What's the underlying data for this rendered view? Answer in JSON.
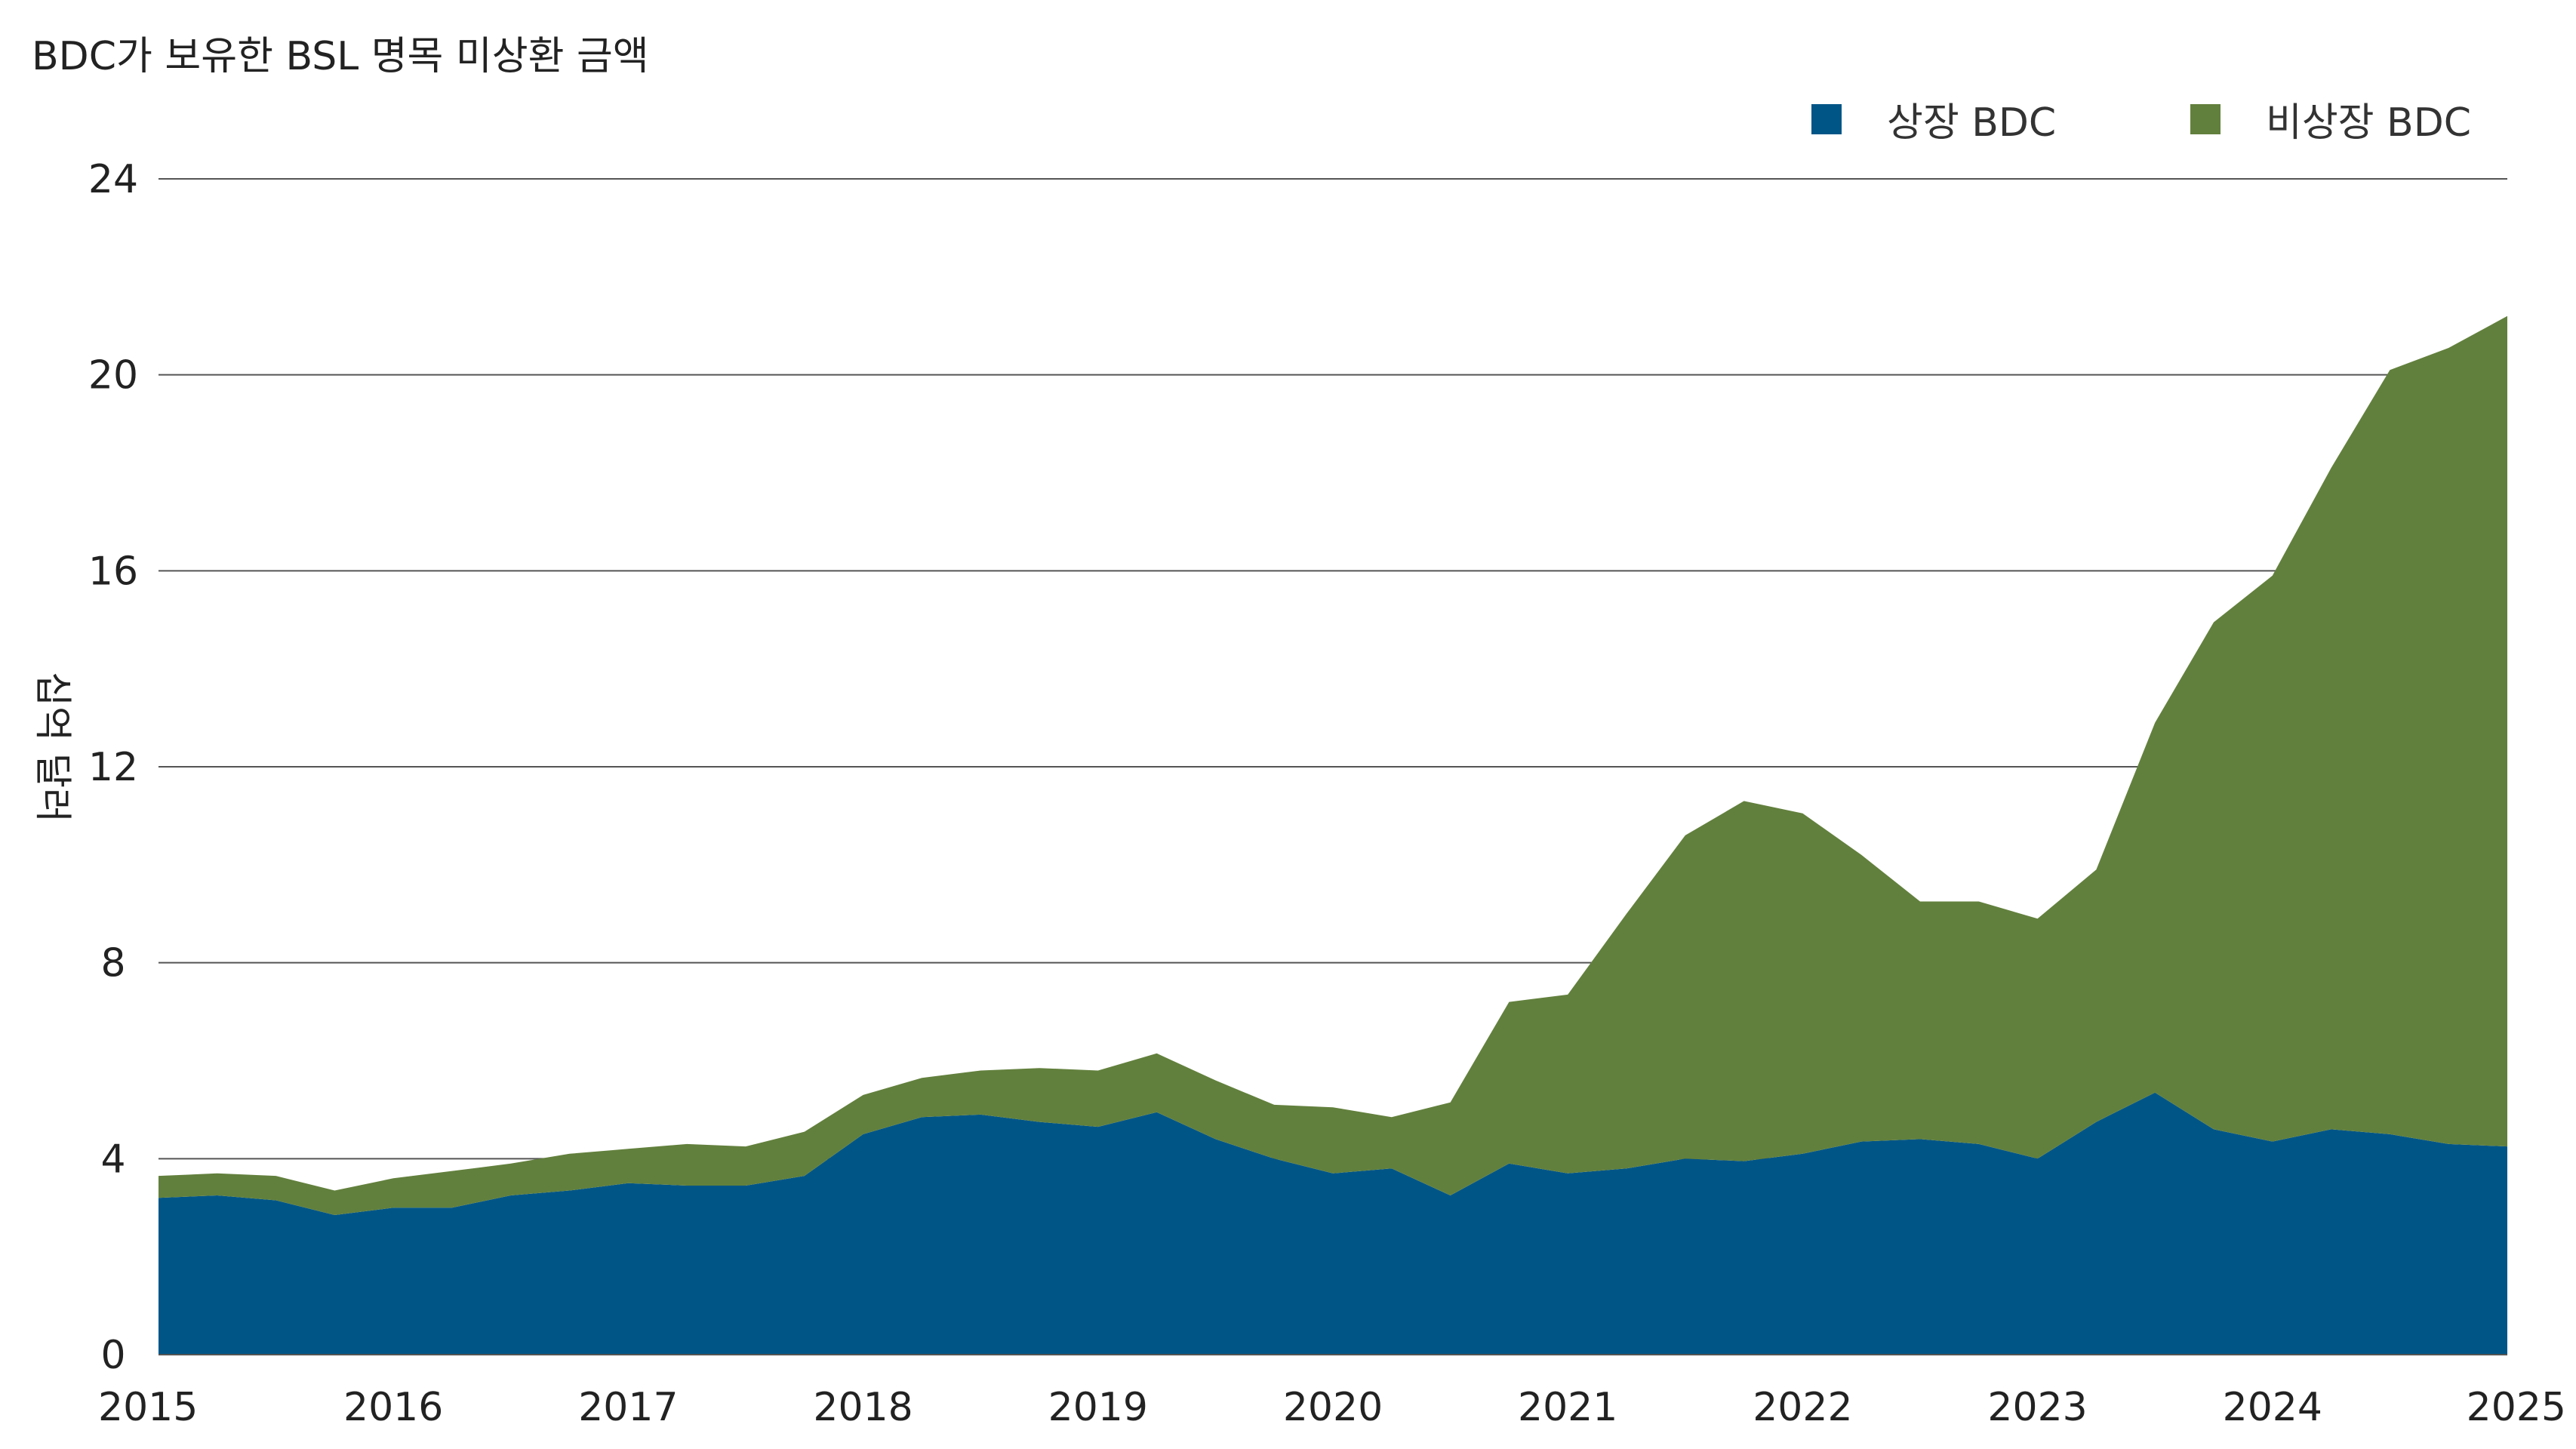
{
  "chart_data": {
    "type": "area",
    "stacked": true,
    "title": "BDC가 보유한 BSL 명목 미상환 금액",
    "ylabel": "십억 달러",
    "xlabel": "",
    "ylim": [
      0,
      24
    ],
    "yticks": [
      "0",
      "4",
      "8",
      "12",
      "16",
      "20",
      "24"
    ],
    "xlim": [
      2015,
      2025
    ],
    "xticks": [
      "2015",
      "2016",
      "2017",
      "2018",
      "2019",
      "2020",
      "2021",
      "2022",
      "2023",
      "2024",
      "2025"
    ],
    "grid": "horizontal",
    "legend_position": "top-right",
    "x": [
      2015.0,
      2015.25,
      2015.5,
      2015.75,
      2016.0,
      2016.25,
      2016.5,
      2016.75,
      2017.0,
      2017.25,
      2017.5,
      2017.75,
      2018.0,
      2018.25,
      2018.5,
      2018.75,
      2019.0,
      2019.25,
      2019.5,
      2019.75,
      2020.0,
      2020.25,
      2020.5,
      2020.75,
      2021.0,
      2021.25,
      2021.5,
      2021.75,
      2022.0,
      2022.25,
      2022.5,
      2022.75,
      2023.0,
      2023.25,
      2023.5,
      2023.75,
      2024.0,
      2024.25,
      2024.5,
      2024.75,
      2025.0
    ],
    "series": [
      {
        "name": "상장 BDC",
        "color": "#005587",
        "values": [
          3.2,
          3.25,
          3.15,
          2.85,
          3.0,
          3.0,
          3.25,
          3.35,
          3.5,
          3.45,
          3.45,
          3.65,
          4.5,
          4.85,
          4.9,
          4.75,
          4.65,
          4.95,
          4.4,
          4.0,
          3.7,
          3.8,
          3.25,
          3.9,
          3.7,
          3.8,
          4.0,
          3.95,
          4.1,
          4.35,
          4.4,
          4.3,
          4.0,
          4.75,
          5.35,
          4.6,
          4.35,
          4.6,
          4.5,
          4.3,
          4.25
        ]
      },
      {
        "name": "비상장 BDC",
        "color": "#62803d",
        "values": [
          0.45,
          0.45,
          0.5,
          0.5,
          0.6,
          0.75,
          0.65,
          0.75,
          0.7,
          0.85,
          0.8,
          0.9,
          0.8,
          0.8,
          0.9,
          1.1,
          1.15,
          1.2,
          1.2,
          1.1,
          1.35,
          1.05,
          1.9,
          3.3,
          3.65,
          5.2,
          6.6,
          7.35,
          6.95,
          5.85,
          4.85,
          4.95,
          4.9,
          5.15,
          7.55,
          10.35,
          11.55,
          13.5,
          15.6,
          16.25,
          16.95
        ]
      }
    ]
  }
}
